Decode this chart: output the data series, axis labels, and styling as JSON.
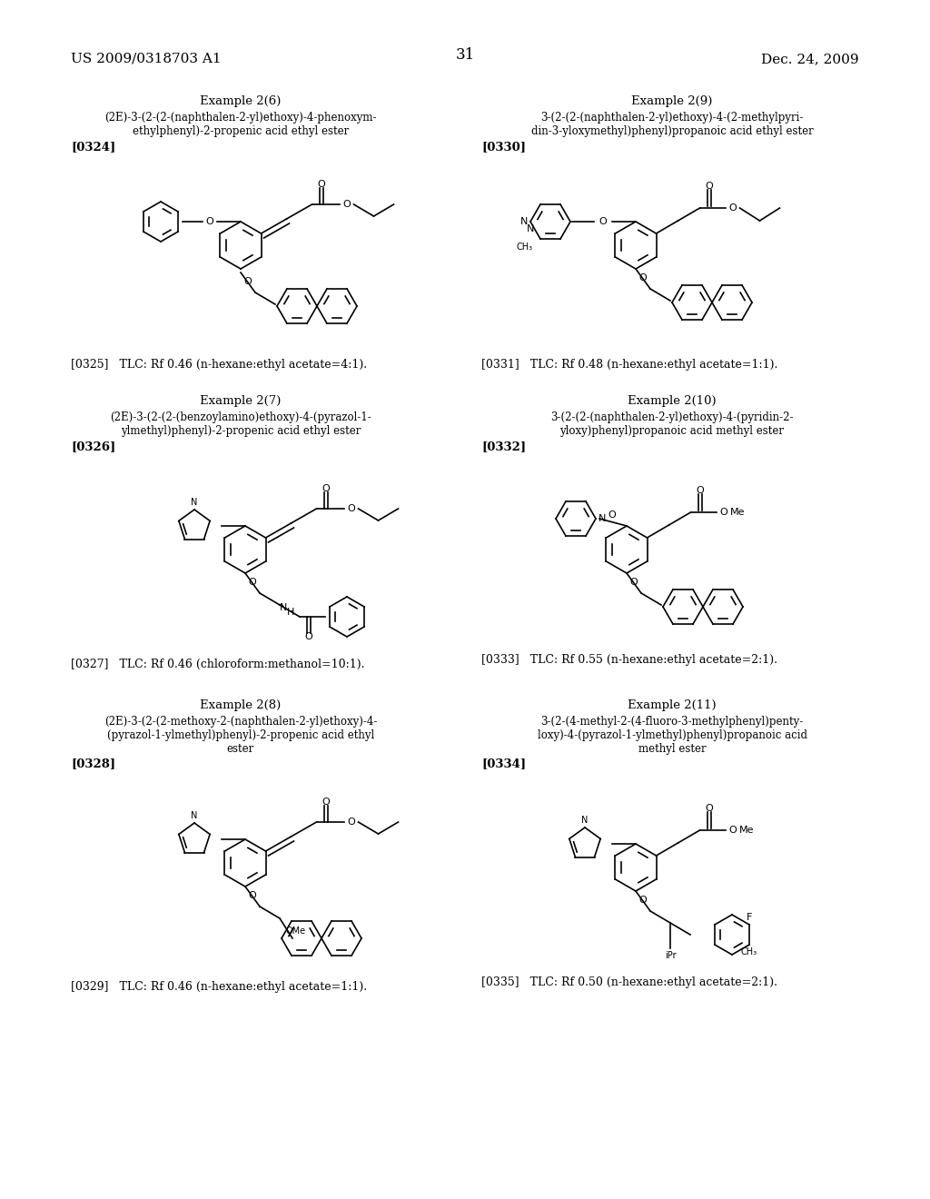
{
  "page_header_left": "US 2009/0318703 A1",
  "page_header_right": "Dec. 24, 2009",
  "page_number": "31",
  "background_color": "#ffffff",
  "text_color": "#000000",
  "font_size_header": 11,
  "font_size_example": 9.5,
  "font_size_name": 8.5,
  "font_size_ref": 9.5,
  "font_size_tlc": 9,
  "entries": [
    {
      "example": "Example 2(6)",
      "name_lines": [
        "(2E)-3-(2-(2-(naphthalen-2-yl)ethoxy)-4-phenoxym-",
        "ethylphenyl)-2-propenic acid ethyl ester"
      ],
      "ref": "[0324]",
      "tlc_ref": "[0325]",
      "tlc": "TLC: Rf 0.46 (n-hexane:ethyl acetate=4:1).",
      "col": 0,
      "row": 0
    },
    {
      "example": "Example 2(9)",
      "name_lines": [
        "3-(2-(2-(naphthalen-2-yl)ethoxy)-4-(2-methylpyri-",
        "din-3-yloxymethyl)phenyl)propanoic acid ethyl ester"
      ],
      "ref": "[0330]",
      "tlc_ref": "[0331]",
      "tlc": "TLC: Rf 0.48 (n-hexane:ethyl acetate=1:1).",
      "col": 1,
      "row": 0
    },
    {
      "example": "Example 2(7)",
      "name_lines": [
        "(2E)-3-(2-(2-(benzoylamino)ethoxy)-4-(pyrazol-1-",
        "ylmethyl)phenyl)-2-propenic acid ethyl ester"
      ],
      "ref": "[0326]",
      "tlc_ref": "[0327]",
      "tlc": "TLC: Rf 0.46 (chloroform:methanol=10:1).",
      "col": 0,
      "row": 1
    },
    {
      "example": "Example 2(10)",
      "name_lines": [
        "3-(2-(2-(naphthalen-2-yl)ethoxy)-4-(pyridin-2-",
        "yloxy)phenyl)propanoic acid methyl ester"
      ],
      "ref": "[0332]",
      "tlc_ref": "[0333]",
      "tlc": "TLC: Rf 0.55 (n-hexane:ethyl acetate=2:1).",
      "col": 1,
      "row": 1
    },
    {
      "example": "Example 2(8)",
      "name_lines": [
        "(2E)-3-(2-(2-methoxy-2-(naphthalen-2-yl)ethoxy)-4-",
        "(pyrazol-1-ylmethyl)phenyl)-2-propenic acid ethyl",
        "ester"
      ],
      "ref": "[0328]",
      "tlc_ref": "[0329]",
      "tlc": "TLC: Rf 0.46 (n-hexane:ethyl acetate=1:1).",
      "col": 0,
      "row": 2
    },
    {
      "example": "Example 2(11)",
      "name_lines": [
        "3-(2-(4-methyl-2-(4-fluoro-3-methylphenyl)penty-",
        "loxy)-4-(pyrazol-1-ylmethyl)phenyl)propanoic acid",
        "methyl ester"
      ],
      "ref": "[0334]",
      "tlc_ref": "[0335]",
      "tlc": "TLC: Rf 0.50 (n-hexane:ethyl acetate=2:1).",
      "col": 1,
      "row": 2
    }
  ]
}
